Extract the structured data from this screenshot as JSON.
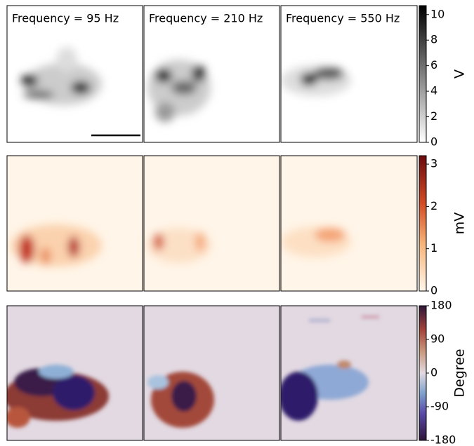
{
  "panels": {
    "titles": [
      "Frequency = 95 Hz",
      "Frequency = 210 Hz",
      "Frequency = 550 Hz"
    ]
  },
  "colorbars": [
    {
      "label": "V",
      "lim": [
        0,
        10.7
      ],
      "ticks": [
        0,
        2,
        4,
        6,
        8,
        10
      ]
    },
    {
      "label": "mV",
      "lim": [
        0,
        3.2
      ],
      "ticks": [
        0,
        1,
        2,
        3
      ]
    },
    {
      "label": "Degree",
      "lim": [
        -180,
        180
      ],
      "ticks": [
        -180,
        -90,
        0,
        90,
        180
      ]
    }
  ]
}
